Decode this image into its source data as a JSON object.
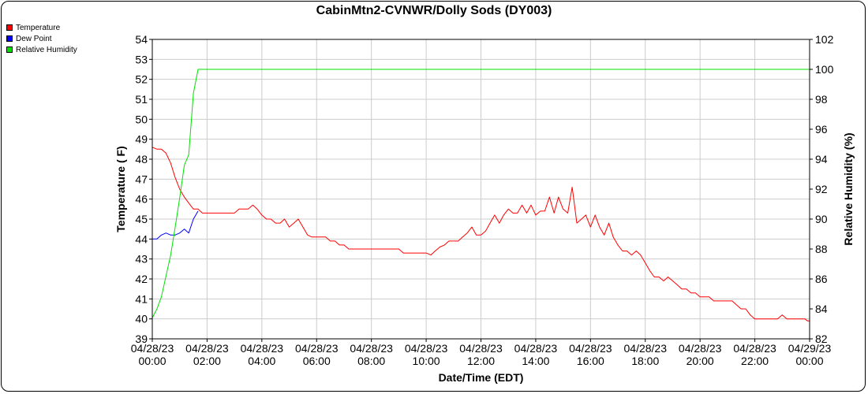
{
  "chart_data": {
    "type": "line",
    "title": "CabinMtn2-CVNWR/Dolly Sods (DY003)",
    "xlabel": "Date/Time (EDT)",
    "ylabel_left": "Temperature ( F)",
    "ylabel_right": "Relative Humidity (%)",
    "ylim_left": [
      39,
      54
    ],
    "ylim_right": [
      82,
      102
    ],
    "grid": true,
    "legend_position": "top-left",
    "x_ticks": [
      {
        "h": 0,
        "date": "04/28/23",
        "time": "00:00"
      },
      {
        "h": 2,
        "date": "04/28/23",
        "time": "02:00"
      },
      {
        "h": 4,
        "date": "04/28/23",
        "time": "04:00"
      },
      {
        "h": 6,
        "date": "04/28/23",
        "time": "06:00"
      },
      {
        "h": 8,
        "date": "04/28/23",
        "time": "08:00"
      },
      {
        "h": 10,
        "date": "04/28/23",
        "time": "10:00"
      },
      {
        "h": 12,
        "date": "04/28/23",
        "time": "12:00"
      },
      {
        "h": 14,
        "date": "04/28/23",
        "time": "14:00"
      },
      {
        "h": 16,
        "date": "04/28/23",
        "time": "16:00"
      },
      {
        "h": 18,
        "date": "04/28/23",
        "time": "18:00"
      },
      {
        "h": 20,
        "date": "04/28/23",
        "time": "20:00"
      },
      {
        "h": 22,
        "date": "04/28/23",
        "time": "22:00"
      },
      {
        "h": 24,
        "date": "04/29/23",
        "time": "00:00"
      }
    ],
    "y_ticks_left": [
      39,
      40,
      41,
      42,
      43,
      44,
      45,
      46,
      47,
      48,
      49,
      50,
      51,
      52,
      53,
      54
    ],
    "y_ticks_right": [
      82,
      84,
      86,
      88,
      90,
      92,
      94,
      96,
      98,
      100,
      102
    ],
    "series": [
      {
        "name": "Temperature",
        "color": "#ff0000",
        "axis": "left",
        "points": [
          [
            0,
            48.6
          ],
          [
            0.17,
            48.5
          ],
          [
            0.33,
            48.5
          ],
          [
            0.5,
            48.3
          ],
          [
            0.67,
            47.8
          ],
          [
            0.83,
            47.1
          ],
          [
            1,
            46.5
          ],
          [
            1.17,
            46.1
          ],
          [
            1.33,
            45.8
          ],
          [
            1.5,
            45.5
          ],
          [
            1.67,
            45.5
          ],
          [
            1.83,
            45.3
          ],
          [
            2,
            45.3
          ],
          [
            2.5,
            45.3
          ],
          [
            3,
            45.3
          ],
          [
            3.17,
            45.5
          ],
          [
            3.33,
            45.5
          ],
          [
            3.5,
            45.5
          ],
          [
            3.67,
            45.7
          ],
          [
            3.83,
            45.5
          ],
          [
            4,
            45.2
          ],
          [
            4.17,
            45.0
          ],
          [
            4.33,
            45.0
          ],
          [
            4.5,
            44.8
          ],
          [
            4.67,
            44.8
          ],
          [
            4.83,
            45.0
          ],
          [
            5,
            44.6
          ],
          [
            5.17,
            44.8
          ],
          [
            5.33,
            45.0
          ],
          [
            5.5,
            44.6
          ],
          [
            5.67,
            44.2
          ],
          [
            5.83,
            44.1
          ],
          [
            6,
            44.1
          ],
          [
            6.33,
            44.1
          ],
          [
            6.5,
            43.9
          ],
          [
            6.67,
            43.9
          ],
          [
            6.83,
            43.7
          ],
          [
            7,
            43.7
          ],
          [
            7.17,
            43.5
          ],
          [
            7.5,
            43.5
          ],
          [
            8,
            43.5
          ],
          [
            8.5,
            43.5
          ],
          [
            9,
            43.5
          ],
          [
            9.17,
            43.3
          ],
          [
            9.5,
            43.3
          ],
          [
            10,
            43.3
          ],
          [
            10.17,
            43.2
          ],
          [
            10.33,
            43.4
          ],
          [
            10.5,
            43.6
          ],
          [
            10.67,
            43.7
          ],
          [
            10.83,
            43.9
          ],
          [
            11,
            43.9
          ],
          [
            11.17,
            43.9
          ],
          [
            11.33,
            44.1
          ],
          [
            11.5,
            44.3
          ],
          [
            11.67,
            44.6
          ],
          [
            11.83,
            44.2
          ],
          [
            12,
            44.2
          ],
          [
            12.17,
            44.4
          ],
          [
            12.33,
            44.8
          ],
          [
            12.5,
            45.2
          ],
          [
            12.67,
            44.8
          ],
          [
            12.83,
            45.2
          ],
          [
            13,
            45.5
          ],
          [
            13.17,
            45.3
          ],
          [
            13.33,
            45.3
          ],
          [
            13.5,
            45.7
          ],
          [
            13.67,
            45.3
          ],
          [
            13.83,
            45.7
          ],
          [
            14,
            45.2
          ],
          [
            14.17,
            45.4
          ],
          [
            14.33,
            45.4
          ],
          [
            14.5,
            46.1
          ],
          [
            14.67,
            45.3
          ],
          [
            14.83,
            46.1
          ],
          [
            15,
            45.5
          ],
          [
            15.17,
            45.3
          ],
          [
            15.33,
            46.6
          ],
          [
            15.5,
            44.8
          ],
          [
            15.67,
            45.0
          ],
          [
            15.83,
            45.2
          ],
          [
            16,
            44.6
          ],
          [
            16.17,
            45.2
          ],
          [
            16.33,
            44.6
          ],
          [
            16.5,
            44.2
          ],
          [
            16.67,
            44.8
          ],
          [
            16.83,
            44.1
          ],
          [
            17,
            43.7
          ],
          [
            17.17,
            43.4
          ],
          [
            17.33,
            43.4
          ],
          [
            17.5,
            43.2
          ],
          [
            17.67,
            43.4
          ],
          [
            17.83,
            43.2
          ],
          [
            18,
            42.8
          ],
          [
            18.17,
            42.4
          ],
          [
            18.33,
            42.1
          ],
          [
            18.5,
            42.1
          ],
          [
            18.67,
            41.9
          ],
          [
            18.83,
            42.1
          ],
          [
            19,
            41.9
          ],
          [
            19.17,
            41.7
          ],
          [
            19.33,
            41.5
          ],
          [
            19.5,
            41.5
          ],
          [
            19.67,
            41.3
          ],
          [
            19.83,
            41.3
          ],
          [
            20,
            41.1
          ],
          [
            20.17,
            41.1
          ],
          [
            20.33,
            41.1
          ],
          [
            20.5,
            40.9
          ],
          [
            20.67,
            40.9
          ],
          [
            21,
            40.9
          ],
          [
            21.17,
            40.9
          ],
          [
            21.33,
            40.7
          ],
          [
            21.5,
            40.5
          ],
          [
            21.67,
            40.5
          ],
          [
            21.83,
            40.2
          ],
          [
            22,
            40.0
          ],
          [
            22.33,
            40.0
          ],
          [
            22.67,
            40.0
          ],
          [
            22.83,
            40.0
          ],
          [
            23,
            40.2
          ],
          [
            23.17,
            40.0
          ],
          [
            23.5,
            40.0
          ],
          [
            23.83,
            40.0
          ],
          [
            23.92,
            39.9
          ],
          [
            24,
            39.9
          ]
        ]
      },
      {
        "name": "Dew Point",
        "color": "#0000ff",
        "axis": "left",
        "points": [
          [
            0,
            44.0
          ],
          [
            0.17,
            44.0
          ],
          [
            0.33,
            44.2
          ],
          [
            0.5,
            44.3
          ],
          [
            0.67,
            44.2
          ],
          [
            0.83,
            44.2
          ],
          [
            1,
            44.3
          ],
          [
            1.17,
            44.5
          ],
          [
            1.33,
            44.3
          ],
          [
            1.5,
            45.0
          ],
          [
            1.67,
            45.4
          ]
        ]
      },
      {
        "name": "Relative Humidity",
        "color": "#00e000",
        "axis": "right",
        "points": [
          [
            0,
            83.4
          ],
          [
            0.17,
            84.0
          ],
          [
            0.33,
            84.8
          ],
          [
            0.5,
            86.2
          ],
          [
            0.67,
            87.6
          ],
          [
            0.83,
            89.4
          ],
          [
            1,
            91.4
          ],
          [
            1.17,
            93.6
          ],
          [
            1.33,
            94.3
          ],
          [
            1.5,
            98.4
          ],
          [
            1.67,
            100
          ],
          [
            2,
            100
          ],
          [
            24,
            100
          ]
        ]
      }
    ]
  }
}
